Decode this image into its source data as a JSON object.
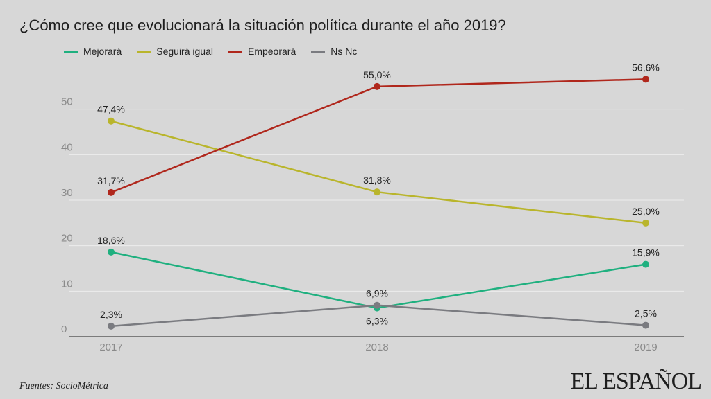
{
  "title": "¿Cómo cree que evolucionará la situación política durante el año 2019?",
  "source": "Fuentes: SocioMétrica",
  "logo": "EL ESPAÑOL",
  "chart_data": {
    "type": "line",
    "categories": [
      "2017",
      "2018",
      "2019"
    ],
    "ylim": [
      0,
      60
    ],
    "yticks": [
      0,
      10,
      20,
      30,
      40,
      50
    ],
    "grid": true,
    "legend_position": "top-left",
    "series": [
      {
        "name": "Mejorará",
        "color": "#1fb07f",
        "values": [
          18.6,
          6.3,
          15.9
        ],
        "labels": [
          "18,6%",
          "6,3%",
          "15,9%"
        ]
      },
      {
        "name": "Seguirá igual",
        "color": "#b9b52c",
        "values": [
          47.4,
          31.8,
          25.0
        ],
        "labels": [
          "47,4%",
          "31,8%",
          "25,0%"
        ]
      },
      {
        "name": "Empeorará",
        "color": "#b0271c",
        "values": [
          31.7,
          55.0,
          56.6
        ],
        "labels": [
          "31,7%",
          "55,0%",
          "56,6%"
        ]
      },
      {
        "name": "Ns Nc",
        "color": "#7a7b80",
        "values": [
          2.3,
          6.9,
          2.5
        ],
        "labels": [
          "2,3%",
          "6,9%",
          "2,5%"
        ]
      }
    ]
  }
}
